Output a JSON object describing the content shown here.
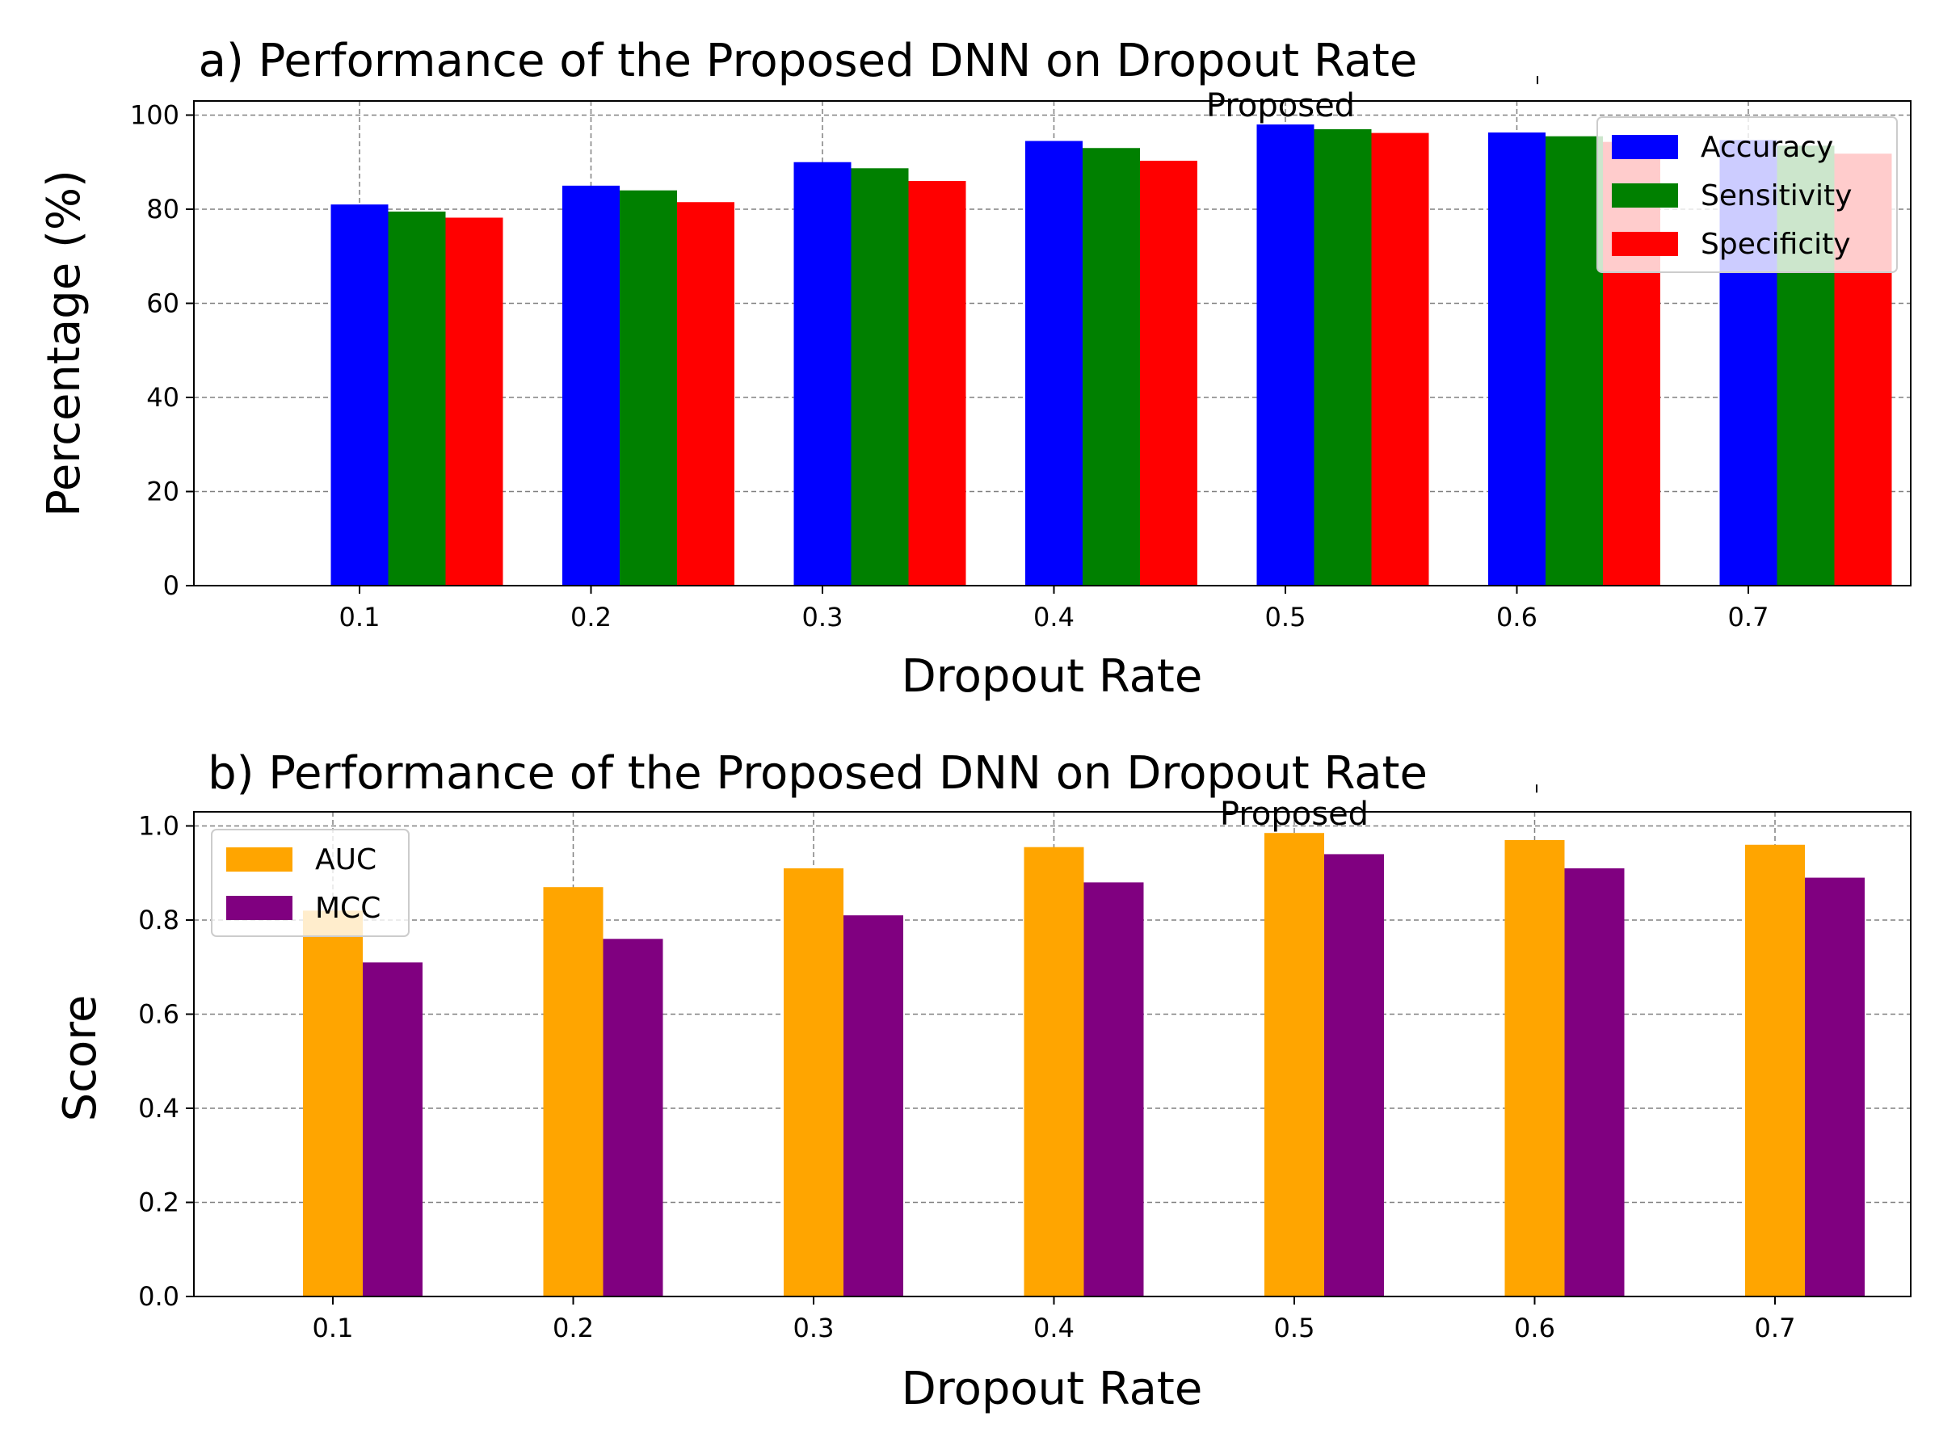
{
  "chart_data": [
    {
      "type": "bar",
      "title": "a) Performance of the Proposed DNN on Dropout Rate",
      "xlabel": "Dropout Rate",
      "ylabel": "Percentage (%)",
      "categories": [
        "0.1",
        "0.2",
        "0.3",
        "0.4",
        "0.5",
        "0.6",
        "0.7"
      ],
      "series": [
        {
          "name": "Accuracy",
          "color": "#0000ff",
          "values": [
            81,
            85,
            90,
            94.5,
            98,
            96.3,
            94.7
          ]
        },
        {
          "name": "Sensitivity",
          "color": "#008000",
          "values": [
            79.5,
            84,
            88.7,
            93,
            97,
            95.5,
            93.5
          ]
        },
        {
          "name": "Specificity",
          "color": "#ff0000",
          "values": [
            78.2,
            81.5,
            86,
            90.3,
            96.2,
            94.3,
            91.8
          ]
        }
      ],
      "ylim": [
        0,
        103
      ],
      "yticks": [
        "0",
        "20",
        "40",
        "60",
        "80",
        "100"
      ],
      "grid": true,
      "legend": "upper right",
      "annotation": {
        "text": "Proposed",
        "category": "0.5"
      }
    },
    {
      "type": "bar",
      "title": "b) Performance of the Proposed DNN on Dropout Rate",
      "xlabel": "Dropout Rate",
      "ylabel": "Score",
      "categories": [
        "0.1",
        "0.2",
        "0.3",
        "0.4",
        "0.5",
        "0.6",
        "0.7"
      ],
      "series": [
        {
          "name": "AUC",
          "color": "#ffa500",
          "values": [
            0.82,
            0.87,
            0.91,
            0.955,
            0.985,
            0.97,
            0.96
          ]
        },
        {
          "name": "MCC",
          "color": "#800080",
          "values": [
            0.71,
            0.76,
            0.81,
            0.88,
            0.94,
            0.91,
            0.89
          ]
        }
      ],
      "ylim": [
        0,
        1.03
      ],
      "yticks": [
        "0.0",
        "0.2",
        "0.4",
        "0.6",
        "0.8",
        "1.0"
      ],
      "grid": true,
      "legend": "upper left",
      "annotation": {
        "text": "Proposed",
        "category": "0.5"
      }
    }
  ]
}
